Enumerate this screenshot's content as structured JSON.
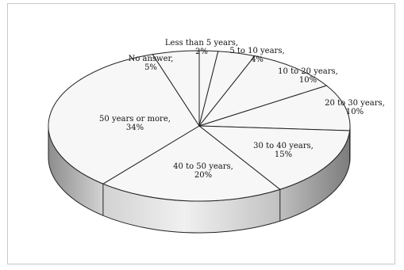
{
  "chart_data": {
    "type": "pie",
    "style": "3d-exploded-tilted",
    "title": "",
    "slices": [
      {
        "label": "Less than 5 years,",
        "pct_label": "2%",
        "value": 2
      },
      {
        "label": "5  to 10 years,",
        "pct_label": "4%",
        "value": 4
      },
      {
        "label": "10 to 20 years,",
        "pct_label": "10%",
        "value": 10
      },
      {
        "label": "20 to 30 years,",
        "pct_label": "10%",
        "value": 10
      },
      {
        "label": "30 to 40 years,",
        "pct_label": "15%",
        "value": 15
      },
      {
        "label": "40 to 50 years,",
        "pct_label": "20%",
        "value": 20
      },
      {
        "label": "50 years or more,",
        "pct_label": "34%",
        "value": 34
      },
      {
        "label": "No answer,",
        "pct_label": "5%",
        "value": 5
      }
    ],
    "colors": {
      "top_face": "#f7f7f7",
      "stroke": "#222222",
      "side_light": "#e6e6e6",
      "side_dark": "#8a8a8a"
    }
  }
}
